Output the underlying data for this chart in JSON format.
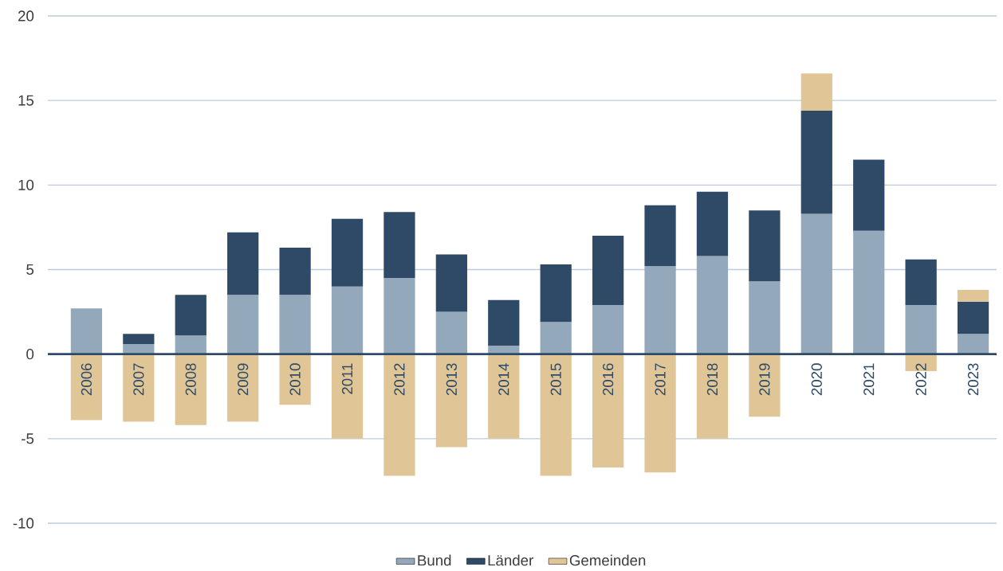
{
  "chart_data": {
    "type": "bar",
    "stacked": true,
    "categories": [
      "2006",
      "2007",
      "2008",
      "2009",
      "2010",
      "2011",
      "2012",
      "2013",
      "2014",
      "2015",
      "2016",
      "2017",
      "2018",
      "2019",
      "2020",
      "2021",
      "2022",
      "2023"
    ],
    "series": [
      {
        "name": "Bund",
        "color": "#94a8bc",
        "values": [
          2.7,
          0.6,
          1.1,
          3.5,
          3.5,
          4.0,
          4.5,
          2.5,
          0.5,
          1.9,
          2.9,
          5.2,
          5.8,
          4.3,
          8.3,
          7.3,
          2.9,
          1.2
        ]
      },
      {
        "name": "Länder",
        "color": "#2e4a66",
        "values": [
          0,
          0.6,
          2.4,
          3.7,
          2.8,
          4.0,
          3.9,
          3.4,
          2.7,
          3.4,
          4.1,
          3.6,
          3.8,
          4.2,
          6.1,
          4.2,
          2.7,
          1.9
        ]
      },
      {
        "name": "Gemeinden",
        "color": "#e0c596",
        "values": [
          -3.9,
          -4.0,
          -4.2,
          -4.0,
          -3.0,
          -5.0,
          -7.2,
          -5.5,
          -5.0,
          -7.2,
          -6.7,
          -7.0,
          -5.0,
          -3.7,
          2.2,
          0,
          -1.0,
          0.7
        ]
      }
    ],
    "ylim": [
      -10,
      20
    ],
    "yticks": [
      -10,
      -5,
      0,
      5,
      10,
      15,
      20
    ],
    "grid": "y",
    "legend": "bottom"
  }
}
